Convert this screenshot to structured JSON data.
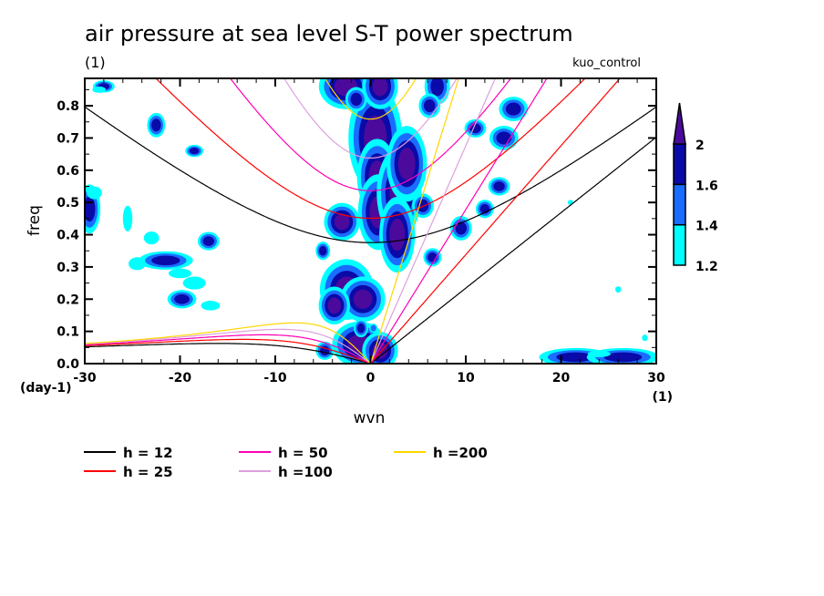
{
  "chart_data": {
    "type": "heatmap",
    "title": "air pressure at sea level S-T power spectrum",
    "subtitle_left": "(1)",
    "subtitle_right": "kuo_control",
    "xlabel": "wvn",
    "ylabel": "freq",
    "x_unit": "(1)",
    "y_unit": "(day-1)",
    "xlim": [
      -30,
      30
    ],
    "ylim": [
      0,
      0.885
    ],
    "xticks": [
      -30,
      -20,
      -10,
      0,
      10,
      20,
      30
    ],
    "xtick_labels": [
      "-30",
      "-20",
      "-10",
      "0",
      "10",
      "20",
      "30"
    ],
    "yticks": [
      0.0,
      0.1,
      0.2,
      0.3,
      0.4,
      0.5,
      0.6,
      0.7,
      0.8
    ],
    "ytick_labels": [
      "0.0",
      "0.1",
      "0.2",
      "0.3",
      "0.4",
      "0.5",
      "0.6",
      "0.7",
      "0.8"
    ],
    "colorbar": {
      "levels": [
        1.2,
        1.4,
        1.6,
        2
      ],
      "labels": [
        "1.2",
        "1.4",
        "1.6",
        "2"
      ],
      "colors": [
        "#00ffff",
        "#1a6dff",
        "#0a0aa8",
        "#4b0a9c"
      ],
      "extend": "max"
    },
    "shaded_regions": [
      {
        "k": 0.5,
        "f": 0.7,
        "dk": 1.2,
        "df": 0.07,
        "level": 2
      },
      {
        "k": 0.7,
        "f": 0.58,
        "dk": 0.9,
        "df": 0.05,
        "level": 2
      },
      {
        "k": 0.8,
        "f": 0.47,
        "dk": 0.9,
        "df": 0.05,
        "level": 2
      },
      {
        "k": 3.0,
        "f": 0.53,
        "dk": 1.0,
        "df": 0.06,
        "level": 2
      },
      {
        "k": 3.8,
        "f": 0.62,
        "dk": 0.9,
        "df": 0.05,
        "level": 2
      },
      {
        "k": 2.8,
        "f": 0.4,
        "dk": 0.8,
        "df": 0.05,
        "level": 2
      },
      {
        "k": -3.0,
        "f": 0.44,
        "dk": 0.8,
        "df": 0.025,
        "level": 2
      },
      {
        "k": -2.5,
        "f": 0.23,
        "dk": 1.2,
        "df": 0.04,
        "level": 2
      },
      {
        "k": -0.8,
        "f": 0.2,
        "dk": 1.0,
        "df": 0.03,
        "level": 2
      },
      {
        "k": -3.8,
        "f": 0.18,
        "dk": 0.7,
        "df": 0.025,
        "level": 2
      },
      {
        "k": -1.2,
        "f": 0.06,
        "dk": 1.2,
        "df": 0.03,
        "level": 2
      },
      {
        "k": 1.0,
        "f": 0.04,
        "dk": 0.8,
        "df": 0.025,
        "level": 2
      },
      {
        "k": -2.6,
        "f": 0.86,
        "dk": 1.2,
        "df": 0.03,
        "level": 2
      },
      {
        "k": 1.0,
        "f": 0.86,
        "dk": 0.8,
        "df": 0.03,
        "level": 2
      },
      {
        "k": 7.0,
        "f": 0.86,
        "dk": 0.7,
        "df": 0.03,
        "level": 1.6
      },
      {
        "k": -1.5,
        "f": 0.82,
        "dk": 0.6,
        "df": 0.02,
        "level": 1.6
      },
      {
        "k": -5.0,
        "f": 0.35,
        "dk": 0.4,
        "df": 0.015,
        "level": 1.6
      },
      {
        "k": -1.0,
        "f": 0.11,
        "dk": 0.4,
        "df": 0.015,
        "level": 1.6
      },
      {
        "k": -4.8,
        "f": 0.04,
        "dk": 0.5,
        "df": 0.015,
        "level": 1.6
      },
      {
        "k": 0.3,
        "f": 0.11,
        "dk": 0.3,
        "df": 0.01,
        "level": 1.4
      },
      {
        "k": 6.2,
        "f": 0.8,
        "dk": 0.6,
        "df": 0.02,
        "level": 1.6
      },
      {
        "k": 11.0,
        "f": 0.73,
        "dk": 0.6,
        "df": 0.015,
        "level": 1.6
      },
      {
        "k": 13.5,
        "f": 0.55,
        "dk": 0.6,
        "df": 0.015,
        "level": 1.6
      },
      {
        "k": 12.0,
        "f": 0.48,
        "dk": 0.5,
        "df": 0.015,
        "level": 1.6
      },
      {
        "k": 9.5,
        "f": 0.42,
        "dk": 0.6,
        "df": 0.02,
        "level": 1.6
      },
      {
        "k": 6.5,
        "f": 0.33,
        "dk": 0.5,
        "df": 0.015,
        "level": 1.6
      },
      {
        "k": 15.0,
        "f": 0.79,
        "dk": 0.8,
        "df": 0.02,
        "level": 1.6
      },
      {
        "k": 14.0,
        "f": 0.7,
        "dk": 0.8,
        "df": 0.02,
        "level": 1.6
      },
      {
        "k": 5.5,
        "f": 0.49,
        "dk": 0.6,
        "df": 0.02,
        "level": 1.6
      },
      {
        "k": -29.5,
        "f": 0.48,
        "dk": 0.6,
        "df": 0.04,
        "level": 1.6
      },
      {
        "k": -25.5,
        "f": 0.45,
        "dk": 0.5,
        "df": 0.04,
        "level": 1.2
      },
      {
        "k": -29.0,
        "f": 0.53,
        "dk": 0.8,
        "df": 0.02,
        "level": 1.2
      },
      {
        "k": -21.5,
        "f": 0.32,
        "dk": 1.5,
        "df": 0.015,
        "level": 1.6
      },
      {
        "k": -20.0,
        "f": 0.28,
        "dk": 1.2,
        "df": 0.015,
        "level": 1.2
      },
      {
        "k": -19.8,
        "f": 0.2,
        "dk": 0.8,
        "df": 0.015,
        "level": 1.6
      },
      {
        "k": -18.5,
        "f": 0.25,
        "dk": 1.2,
        "df": 0.02,
        "level": 1.2
      },
      {
        "k": -17.0,
        "f": 0.38,
        "dk": 0.6,
        "df": 0.015,
        "level": 1.6
      },
      {
        "k": -23.0,
        "f": 0.39,
        "dk": 0.8,
        "df": 0.02,
        "level": 1.2
      },
      {
        "k": -24.5,
        "f": 0.31,
        "dk": 0.9,
        "df": 0.02,
        "level": 1.2
      },
      {
        "k": -16.8,
        "f": 0.18,
        "dk": 1.0,
        "df": 0.015,
        "level": 1.2
      },
      {
        "k": -22.5,
        "f": 0.74,
        "dk": 0.5,
        "df": 0.02,
        "level": 1.6
      },
      {
        "k": -28.0,
        "f": 0.86,
        "dk": 0.6,
        "df": 0.01,
        "level": 1.6
      },
      {
        "k": -28.5,
        "f": 0.85,
        "dk": 0.7,
        "df": 0.01,
        "level": 1.2
      },
      {
        "k": -18.5,
        "f": 0.66,
        "dk": 0.5,
        "df": 0.01,
        "level": 1.6
      },
      {
        "k": 21.5,
        "f": 0.02,
        "dk": 2.0,
        "df": 0.015,
        "level": 1.6
      },
      {
        "k": 26.5,
        "f": 0.02,
        "dk": 2.0,
        "df": 0.015,
        "level": 1.6
      },
      {
        "k": 24.0,
        "f": 0.03,
        "dk": 1.2,
        "df": 0.01,
        "level": 1.2
      },
      {
        "k": 28.8,
        "f": 0.08,
        "dk": 0.3,
        "df": 0.01,
        "level": 1.2
      },
      {
        "k": 26.0,
        "f": 0.23,
        "dk": 0.3,
        "df": 0.01,
        "level": 1.2
      },
      {
        "k": 21.0,
        "f": 0.5,
        "dk": 0.3,
        "df": 0.008,
        "level": 1.2
      }
    ],
    "dispersion_curves": {
      "equivalent_depths_m": [
        12,
        25,
        50,
        100,
        200
      ],
      "colors": [
        "#000000",
        "#ff0000",
        "#ff00b4",
        "#dda0dd",
        "#ffd700"
      ],
      "wave_types": [
        "kelvin",
        "n1_inertia_gravity",
        "n1_rossby"
      ]
    },
    "legend": [
      {
        "label": "h = 12",
        "color": "#000000"
      },
      {
        "label": "h = 50",
        "color": "#ff00b4"
      },
      {
        "label": "h =200",
        "color": "#ffd700"
      },
      {
        "label": "h = 25",
        "color": "#ff0000"
      },
      {
        "label": "h =100",
        "color": "#dda0dd"
      }
    ],
    "grid": false,
    "legend_position": "bottom"
  }
}
